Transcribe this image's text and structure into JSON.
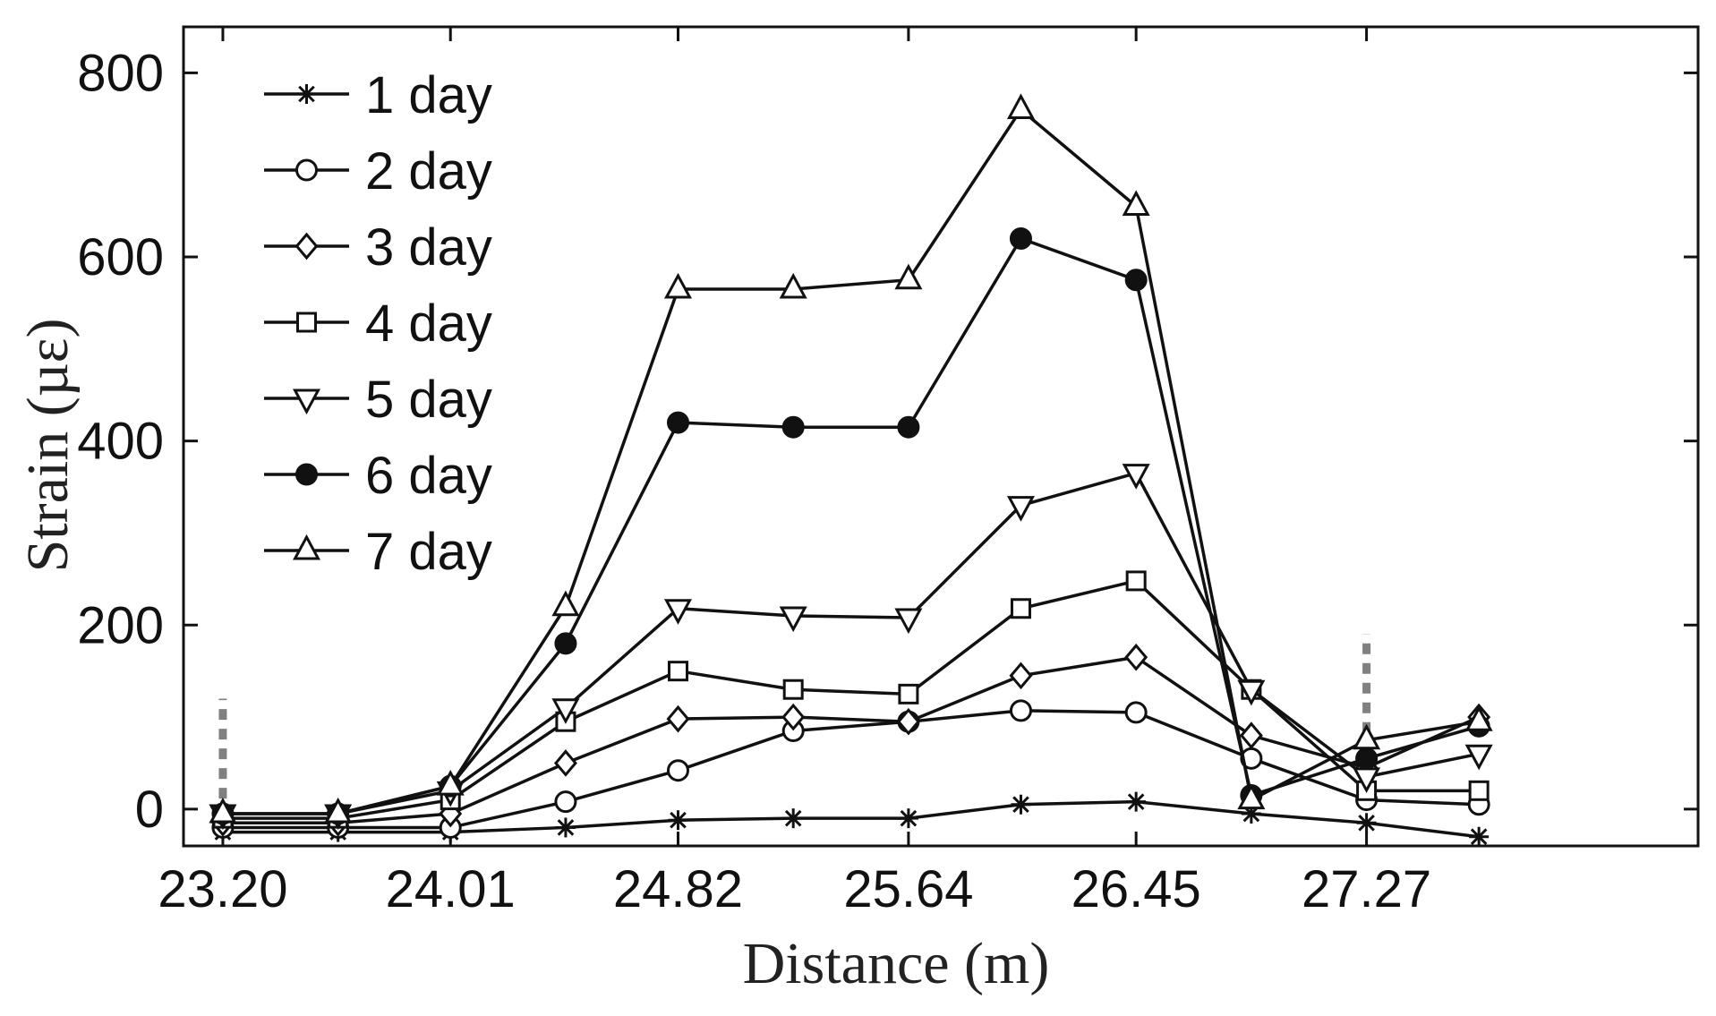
{
  "chart_data": {
    "type": "line",
    "title": "",
    "xlabel": "Distance (m)",
    "ylabel": "Strain (µε)",
    "xlim": [
      23.06,
      28.45
    ],
    "ylim": [
      -40,
      850
    ],
    "x_ticks": [
      23.2,
      24.01,
      24.82,
      25.64,
      26.45,
      27.27
    ],
    "x_tick_labels": [
      "23.20",
      "24.01",
      "24.82",
      "25.64",
      "26.45",
      "27.27"
    ],
    "y_ticks": [
      0,
      200,
      400,
      600,
      800
    ],
    "y_tick_labels": [
      "0",
      "200",
      "400",
      "600",
      "800"
    ],
    "grid": false,
    "legend_position": "top-left",
    "x": [
      23.2,
      23.61,
      24.01,
      24.42,
      24.82,
      25.23,
      25.64,
      26.04,
      26.45,
      26.86,
      27.27,
      27.67
    ],
    "series": [
      {
        "name": "1 day",
        "marker": "star",
        "values": [
          -25,
          -25,
          -25,
          -20,
          -12,
          -10,
          -10,
          5,
          8,
          -5,
          -15,
          -30
        ]
      },
      {
        "name": "2 day",
        "marker": "circle",
        "values": [
          -20,
          -20,
          -20,
          8,
          42,
          85,
          95,
          107,
          105,
          55,
          10,
          5
        ]
      },
      {
        "name": "3 day",
        "marker": "diamond",
        "values": [
          -15,
          -15,
          -5,
          50,
          98,
          100,
          95,
          145,
          165,
          80,
          45,
          100
        ]
      },
      {
        "name": "4 day",
        "marker": "square",
        "values": [
          -10,
          -10,
          10,
          95,
          150,
          130,
          125,
          218,
          248,
          130,
          20,
          20
        ]
      },
      {
        "name": "5 day",
        "marker": "triangle-down",
        "values": [
          -5,
          -5,
          20,
          110,
          218,
          210,
          208,
          330,
          365,
          130,
          35,
          60
        ]
      },
      {
        "name": "6 day",
        "marker": "filled-circle",
        "values": [
          -5,
          -5,
          25,
          180,
          420,
          415,
          415,
          620,
          575,
          15,
          55,
          90
        ]
      },
      {
        "name": "7 day",
        "marker": "triangle-up",
        "values": [
          -5,
          -5,
          25,
          220,
          565,
          565,
          575,
          760,
          655,
          10,
          75,
          95
        ]
      }
    ],
    "annotations": [
      {
        "type": "dashed-vertical-line",
        "x": 23.2,
        "y_from": -10,
        "y_to": 120,
        "color": "#808080"
      },
      {
        "type": "dashed-vertical-line",
        "x": 27.27,
        "y_from": 40,
        "y_to": 190,
        "color": "#808080"
      }
    ],
    "colors": {
      "line": "#111111",
      "marker_stroke": "#111111",
      "marker_fill_open": "#ffffff",
      "annotation": "#808080",
      "axis": "#111111"
    }
  }
}
